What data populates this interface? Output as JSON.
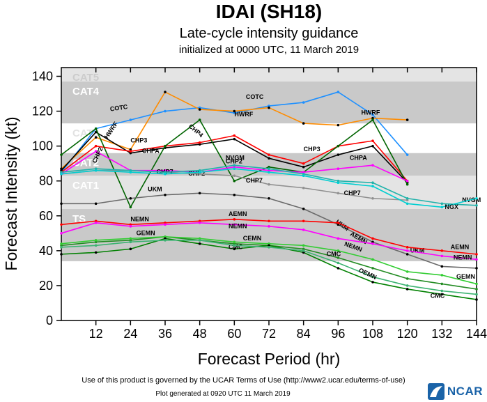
{
  "header": {
    "title": "IDAI (SH18)",
    "subtitle": "Late-cycle intensity guidance",
    "init_line": "initialized at 0000 UTC, 11 March 2019"
  },
  "footer": {
    "terms": "Use of this product is governed by the UCAR Terms of Use (http://www2.ucar.edu/terms-of-use)",
    "generated": "Plot generated at 0920 UTC  11 March 2019",
    "logo_text": "NCAR"
  },
  "chart_data": {
    "type": "line",
    "title": "IDAI (SH18) Late-cycle intensity guidance",
    "xlabel": "Forecast Period (hr)",
    "ylabel": "Forecast Intensity (kt)",
    "xlim": [
      0,
      144
    ],
    "ylim": [
      0,
      145
    ],
    "xticks": [
      12,
      24,
      36,
      48,
      60,
      72,
      84,
      96,
      108,
      120,
      132,
      144
    ],
    "yticks": [
      0,
      20,
      40,
      60,
      80,
      100,
      120,
      140
    ],
    "grid": false,
    "legend_position": "inline-labels",
    "bands": [
      {
        "label": "TS",
        "from": 34,
        "to": 64,
        "color": "#c9c9c9",
        "label_color": "#ffffff"
      },
      {
        "label": "CAT1",
        "from": 64,
        "to": 83,
        "color": "#e4e4e4",
        "label_color": "#ffffff"
      },
      {
        "label": "CAT2",
        "from": 83,
        "to": 96,
        "color": "#c9c9c9",
        "label_color": "#ffffff"
      },
      {
        "label": "CAT3",
        "from": 96,
        "to": 113,
        "color": "#ffffff",
        "label_color": "#e2e2e2"
      },
      {
        "label": "CAT4",
        "from": 113,
        "to": 137,
        "color": "#c9c9c9",
        "label_color": "#ffffff"
      },
      {
        "label": "CAT5",
        "from": 137,
        "to": 145,
        "color": "#e4e4e4",
        "label_color": "#cccccc"
      }
    ],
    "x": [
      0,
      12,
      24,
      36,
      48,
      60,
      72,
      84,
      96,
      108,
      120,
      132,
      144
    ],
    "series": [
      {
        "name": "COTC",
        "color": "#1e90ff",
        "values": [
          85,
          110,
          115,
          120,
          122,
          119,
          123,
          125,
          131,
          118,
          95,
          null,
          null
        ],
        "labels": [
          {
            "x": 17,
            "y": 120,
            "rot": -8
          },
          {
            "x": 64,
            "y": 127,
            "rot": 0
          }
        ]
      },
      {
        "name": "HWRF",
        "color": "#ff8c00",
        "marker": "#000000",
        "values": [
          87,
          105,
          98,
          131,
          121,
          120,
          122,
          113,
          112,
          116,
          115,
          null,
          null
        ],
        "labels": [
          {
            "x": 16,
            "y": 104,
            "rot": -55
          },
          {
            "x": 60,
            "y": 117,
            "rot": 0
          },
          {
            "x": 104,
            "y": 118,
            "rot": 0
          }
        ]
      },
      {
        "name": "CHP3",
        "color": "#000000",
        "values": [
          86,
          108,
          96,
          99,
          101,
          104,
          93,
          88,
          95,
          100,
          79,
          null,
          null
        ],
        "labels": [
          {
            "x": 24,
            "y": 102,
            "rot": 0
          },
          {
            "x": 84,
            "y": 97,
            "rot": 0
          }
        ]
      },
      {
        "name": "CHPA",
        "color": "#ff0000",
        "values": [
          85,
          100,
          97,
          100,
          102,
          106,
          95,
          90,
          100,
          103,
          80,
          null,
          null
        ],
        "labels": [
          {
            "x": 28,
            "y": 96,
            "rot": 0
          },
          {
            "x": 100,
            "y": 92,
            "rot": 0
          }
        ]
      },
      {
        "name": "CHP4",
        "color": "#006400",
        "values": [
          95,
          110,
          65,
          100,
          115,
          80,
          88,
          85,
          100,
          115,
          78,
          null,
          null
        ],
        "labels": [
          {
            "x": 44,
            "y": 111,
            "rot": 40
          }
        ]
      },
      {
        "name": "CHP2",
        "color": "#ff00ff",
        "values": [
          84,
          97,
          86,
          86,
          85,
          88,
          86,
          85,
          87,
          89,
          80,
          null,
          null
        ],
        "labels": [
          {
            "x": 12,
            "y": 90,
            "rot": -65
          },
          {
            "x": 44,
            "y": 83,
            "rot": 0
          },
          {
            "x": 57,
            "y": 90,
            "rot": 0
          }
        ]
      },
      {
        "name": "CHP7",
        "color": "#909090",
        "values": [
          84,
          86,
          86,
          85,
          84,
          83,
          78,
          76,
          73,
          70,
          69,
          null,
          null
        ],
        "labels": [
          {
            "x": 33,
            "y": 84,
            "rot": 0
          },
          {
            "x": 64,
            "y": 79,
            "rot": 0
          },
          {
            "x": 98,
            "y": 72,
            "rot": 0
          }
        ]
      },
      {
        "name": "NVGM",
        "color": "#20b2aa",
        "values": [
          85,
          87,
          86,
          85,
          86,
          89,
          87,
          84,
          80,
          79,
          70,
          67,
          66
        ],
        "labels": [
          {
            "x": 57,
            "y": 92,
            "rot": 0
          },
          {
            "x": 139,
            "y": 68,
            "rot": 0
          }
        ]
      },
      {
        "name": "NGX",
        "color": "#00ced1",
        "values": [
          84,
          86,
          85,
          84,
          85,
          87,
          85,
          83,
          79,
          77,
          67,
          65,
          70
        ],
        "labels": [
          {
            "x": 133,
            "y": 64,
            "rot": 0
          }
        ]
      },
      {
        "name": "UKM",
        "color": "#696969",
        "marker": "#000000",
        "values": [
          67,
          67,
          70,
          72,
          73,
          72,
          70,
          64,
          55,
          45,
          38,
          31,
          30
        ],
        "labels": [
          {
            "x": 30,
            "y": 74,
            "rot": 0
          },
          {
            "x": 95,
            "y": 56,
            "rot": 35
          },
          {
            "x": 121,
            "y": 39,
            "rot": 0
          }
        ]
      },
      {
        "name": "AEMN",
        "color": "#ff0000",
        "values": [
          55,
          57,
          55,
          56,
          57,
          58,
          57,
          57,
          56,
          47,
          42,
          40,
          38
        ],
        "labels": [
          {
            "x": 58,
            "y": 60,
            "rot": 0
          },
          {
            "x": 100,
            "y": 49,
            "rot": 30
          },
          {
            "x": 135,
            "y": 41,
            "rot": 0
          }
        ]
      },
      {
        "name": "NEMN",
        "color": "#ff00ff",
        "values": [
          50,
          56,
          54,
          55,
          56,
          55,
          54,
          52,
          47,
          44,
          40,
          37,
          35
        ],
        "labels": [
          {
            "x": 24,
            "y": 57,
            "rot": 0
          },
          {
            "x": 58,
            "y": 53,
            "rot": 0
          },
          {
            "x": 98,
            "y": 43,
            "rot": 20
          },
          {
            "x": 136,
            "y": 35,
            "rot": 0
          }
        ]
      },
      {
        "name": "CEMN",
        "color": "#228b22",
        "values": [
          43,
          45,
          46,
          48,
          46,
          44,
          43,
          41,
          36,
          30,
          24,
          21,
          18
        ],
        "labels": [
          {
            "x": 63,
            "y": 46,
            "rot": 0
          }
        ]
      },
      {
        "name": "GEMN",
        "color": "#32cd32",
        "values": [
          44,
          46,
          47,
          48,
          47,
          45,
          44,
          43,
          40,
          35,
          28,
          26,
          21
        ],
        "labels": [
          {
            "x": 26,
            "y": 49,
            "rot": 0
          },
          {
            "x": 137,
            "y": 24,
            "rot": 0
          }
        ]
      },
      {
        "name": "CMC",
        "color": "#008000",
        "marker": "#000000",
        "values": [
          38,
          39,
          41,
          47,
          44,
          41,
          43,
          39,
          30,
          22,
          18,
          15,
          12
        ],
        "labels": [
          {
            "x": 58,
            "y": 41,
            "rot": 0
          },
          {
            "x": 92,
            "y": 37,
            "rot": 0
          },
          {
            "x": 128,
            "y": 13,
            "rot": 0
          }
        ]
      },
      {
        "name": "OEMN",
        "color": "#3cb371",
        "values": [
          42,
          43,
          45,
          46,
          46,
          43,
          42,
          40,
          33,
          25,
          20,
          17,
          15
        ],
        "labels": [
          {
            "x": 103,
            "y": 28,
            "rot": 25
          }
        ]
      }
    ]
  }
}
